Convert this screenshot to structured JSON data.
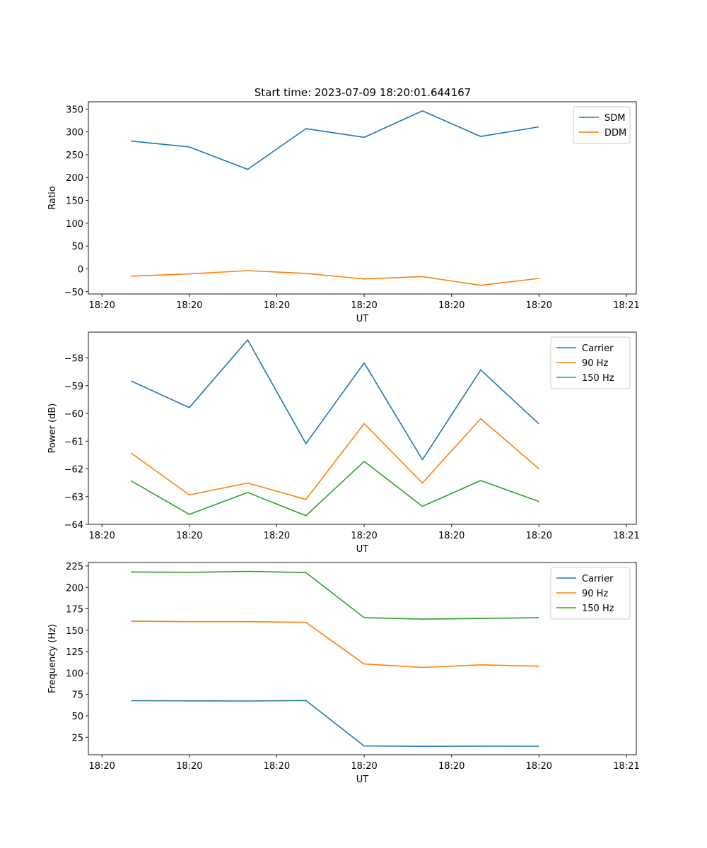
{
  "figure_title": "Start time: 2023-07-09 18:20:01.644167",
  "chart_data": [
    {
      "type": "line",
      "title": "Start time: 2023-07-09 18:20:01.644167",
      "xlabel": "UT",
      "ylabel": "Ratio",
      "x": [
        1,
        2,
        3,
        4,
        5,
        6,
        7,
        8
      ],
      "xlim": [
        0.267,
        9.67
      ],
      "x_ticks": [
        0.5,
        2,
        3.5,
        5,
        6.5,
        8,
        9.5
      ],
      "x_tick_labels": [
        "18:20",
        "18:20",
        "18:20",
        "18:20",
        "18:20",
        "18:20",
        "18:21"
      ],
      "ylim": [
        -55,
        366
      ],
      "y_ticks": [
        -50,
        0,
        50,
        100,
        150,
        200,
        250,
        300,
        350
      ],
      "y_tick_labels": [
        "−50",
        "0",
        "50",
        "100",
        "150",
        "200",
        "250",
        "300",
        "350"
      ],
      "legend_position": "top-right",
      "series": [
        {
          "name": "SDM",
          "color": "#1f77b4",
          "values": [
            280,
            267,
            218,
            307,
            288,
            346,
            290,
            311
          ]
        },
        {
          "name": "DDM",
          "color": "#ff7f0e",
          "values": [
            -16,
            -11,
            -4,
            -10,
            -22,
            -17,
            -36,
            -21
          ]
        }
      ]
    },
    {
      "type": "line",
      "title": "",
      "xlabel": "UT",
      "ylabel": "Power (dB)",
      "x": [
        1,
        2,
        3,
        4,
        5,
        6,
        7,
        8
      ],
      "xlim": [
        0.267,
        9.67
      ],
      "x_ticks": [
        0.5,
        2,
        3.5,
        5,
        6.5,
        8,
        9.5
      ],
      "x_tick_labels": [
        "18:20",
        "18:20",
        "18:20",
        "18:20",
        "18:20",
        "18:20",
        "18:21"
      ],
      "ylim": [
        -64.0,
        -57.07
      ],
      "y_ticks": [
        -64,
        -63,
        -62,
        -61,
        -60,
        -59,
        -58
      ],
      "y_tick_labels": [
        "−64",
        "−63",
        "−62",
        "−61",
        "−60",
        "−59",
        "−58"
      ],
      "legend_position": "top-right",
      "series": [
        {
          "name": "Carrier",
          "color": "#1f77b4",
          "values": [
            -58.83,
            -59.79,
            -57.35,
            -61.09,
            -58.18,
            -61.67,
            -58.43,
            -60.38
          ]
        },
        {
          "name": "90 Hz",
          "color": "#ff7f0e",
          "values": [
            -61.43,
            -62.94,
            -62.51,
            -63.1,
            -60.37,
            -62.51,
            -60.19,
            -62.0
          ]
        },
        {
          "name": "150 Hz",
          "color": "#2ca02c",
          "values": [
            -62.43,
            -63.64,
            -62.85,
            -63.69,
            -61.73,
            -63.35,
            -62.42,
            -63.18
          ]
        }
      ]
    },
    {
      "type": "line",
      "title": "",
      "xlabel": "UT",
      "ylabel": "Frequency (Hz)",
      "x": [
        1,
        2,
        3,
        4,
        5,
        6,
        7,
        8
      ],
      "xlim": [
        0.267,
        9.67
      ],
      "x_ticks": [
        0.5,
        2,
        3.5,
        5,
        6.5,
        8,
        9.5
      ],
      "x_tick_labels": [
        "18:20",
        "18:20",
        "18:20",
        "18:20",
        "18:20",
        "18:20",
        "18:21"
      ],
      "ylim": [
        4.6,
        229.1
      ],
      "y_ticks": [
        25,
        50,
        75,
        100,
        125,
        150,
        175,
        200,
        225
      ],
      "y_tick_labels": [
        "25",
        "50",
        "75",
        "100",
        "125",
        "150",
        "175",
        "200",
        "225"
      ],
      "legend_position": "top-right",
      "series": [
        {
          "name": "Carrier",
          "color": "#1f77b4",
          "values": [
            67.7,
            67.5,
            67.3,
            67.9,
            14.8,
            14.3,
            14.6,
            14.5
          ]
        },
        {
          "name": "90 Hz",
          "color": "#ff7f0e",
          "values": [
            160.7,
            160.0,
            160.0,
            159.2,
            110.6,
            106.5,
            109.6,
            107.9
          ]
        },
        {
          "name": "150 Hz",
          "color": "#2ca02c",
          "values": [
            218.0,
            217.6,
            218.7,
            217.4,
            164.6,
            163.0,
            163.7,
            164.6
          ]
        }
      ]
    }
  ]
}
